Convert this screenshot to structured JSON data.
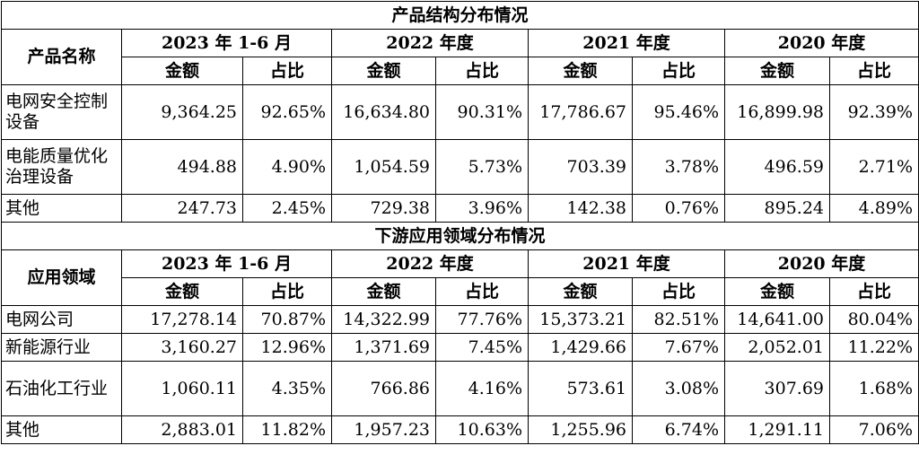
{
  "product": {
    "title": "产品结构分布情况",
    "name_header": "产品名称",
    "periods": [
      "2023 年 1-6 月",
      "2022 年度",
      "2021 年度",
      "2020 年度"
    ],
    "sub_amount": "金额",
    "sub_ratio": "占比",
    "rows": [
      {
        "label": "电网安全控制设备",
        "values": [
          "9,364.25",
          "92.65%",
          "16,634.80",
          "90.31%",
          "17,786.67",
          "95.46%",
          "16,899.98",
          "92.39%"
        ]
      },
      {
        "label": "电能质量优化治理设备",
        "values": [
          "494.88",
          "4.90%",
          "1,054.59",
          "5.73%",
          "703.39",
          "3.78%",
          "496.59",
          "2.71%"
        ]
      },
      {
        "label": "其他",
        "values": [
          "247.73",
          "2.45%",
          "729.38",
          "3.96%",
          "142.38",
          "0.76%",
          "895.24",
          "4.89%"
        ]
      }
    ]
  },
  "application": {
    "title": "下游应用领域分布情况",
    "name_header": "应用领域",
    "periods": [
      "2023 年 1-6 月",
      "2022 年度",
      "2021 年度",
      "2020 年度"
    ],
    "sub_amount": "金额",
    "sub_ratio": "占比",
    "rows": [
      {
        "label": "电网公司",
        "values": [
          "17,278.14",
          "70.87%",
          "14,322.99",
          "77.76%",
          "15,373.21",
          "82.51%",
          "14,641.00",
          "80.04%"
        ]
      },
      {
        "label": "新能源行业",
        "values": [
          "3,160.27",
          "12.96%",
          "1,371.69",
          "7.45%",
          "1,429.66",
          "7.67%",
          "2,052.01",
          "11.22%"
        ]
      },
      {
        "label": "石油化工行业",
        "values": [
          "1,060.11",
          "4.35%",
          "766.86",
          "4.16%",
          "573.61",
          "3.08%",
          "307.69",
          "1.68%"
        ]
      },
      {
        "label": "其他",
        "values": [
          "2,883.01",
          "11.82%",
          "1,957.23",
          "10.63%",
          "1,255.96",
          "6.74%",
          "1,291.11",
          "7.06%"
        ]
      }
    ]
  }
}
